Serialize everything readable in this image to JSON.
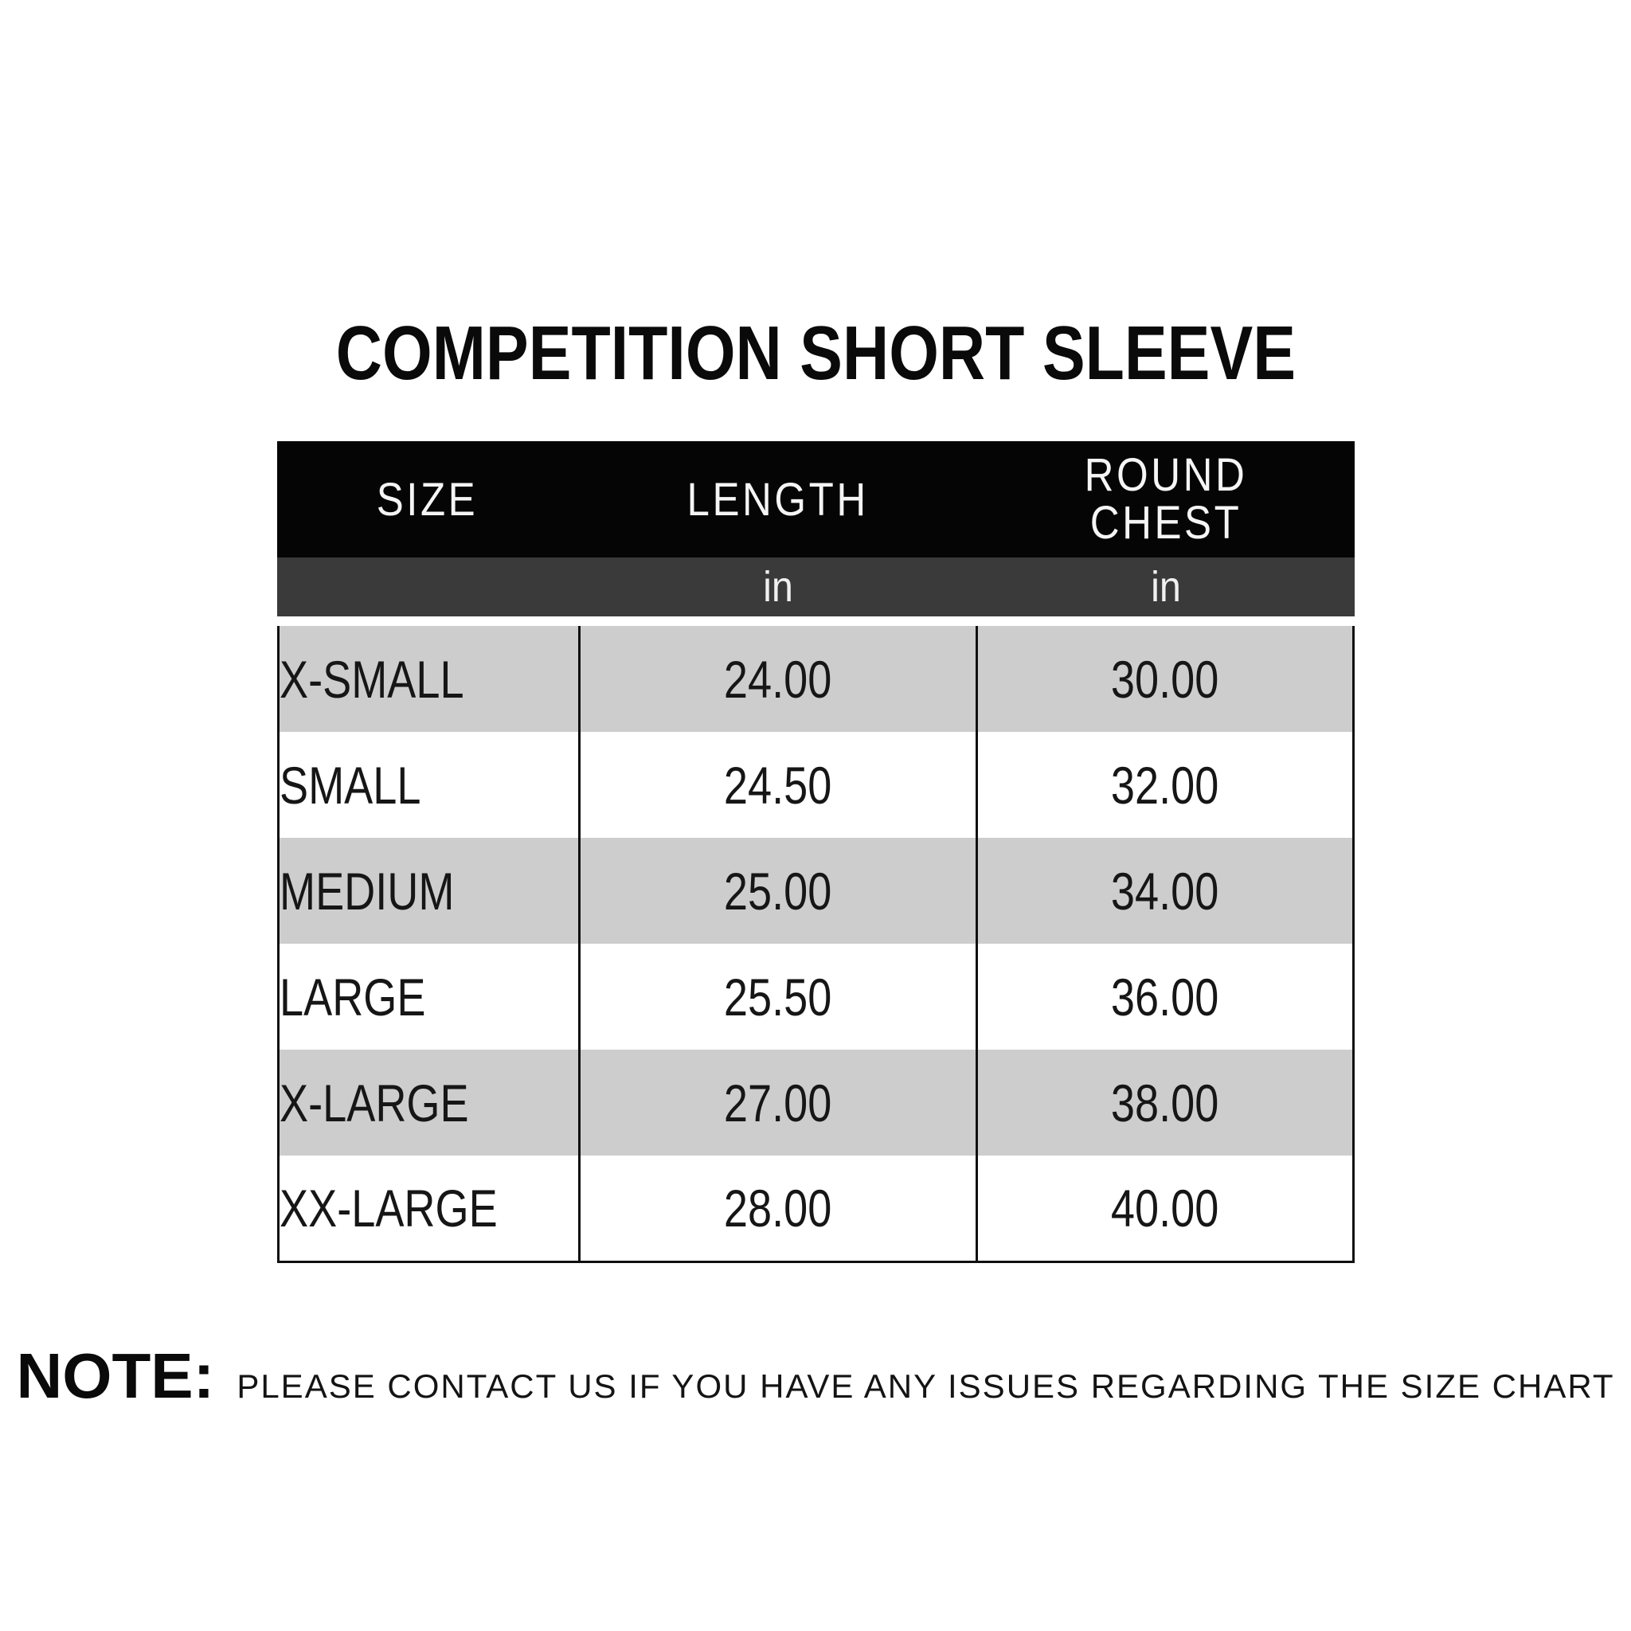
{
  "title": "COMPETITION SHORT SLEEVE",
  "table": {
    "header": {
      "size": "SIZE",
      "length": "LENGTH",
      "round_chest": "ROUND CHEST"
    },
    "units": {
      "length": "in",
      "round_chest": "in"
    },
    "rows": [
      {
        "size": "X-SMALL",
        "length": "24.00",
        "round_chest": "30.00"
      },
      {
        "size": "SMALL",
        "length": "24.50",
        "round_chest": "32.00"
      },
      {
        "size": "MEDIUM",
        "length": "25.00",
        "round_chest": "34.00"
      },
      {
        "size": "LARGE",
        "length": "25.50",
        "round_chest": "36.00"
      },
      {
        "size": "X-LARGE",
        "length": "27.00",
        "round_chest": "38.00"
      },
      {
        "size": "XX-LARGE",
        "length": "28.00",
        "round_chest": "40.00"
      }
    ]
  },
  "note": {
    "label": "NOTE:",
    "text": "PLEASE CONTACT US IF YOU HAVE ANY ISSUES REGARDING THE SIZE CHART"
  },
  "colors": {
    "header_bg": "#050505",
    "units_bg": "#3a3a3a",
    "row_stripe_bg": "#cdcdcd",
    "row_bg": "#ffffff",
    "border": "#101010",
    "text": "#161616",
    "header_text": "#f5f5f5"
  },
  "chart_data": {
    "type": "table",
    "title": "COMPETITION SHORT SLEEVE",
    "columns": [
      "SIZE",
      "LENGTH (in)",
      "ROUND CHEST (in)"
    ],
    "rows": [
      [
        "X-SMALL",
        24.0,
        30.0
      ],
      [
        "SMALL",
        24.5,
        32.0
      ],
      [
        "MEDIUM",
        25.0,
        34.0
      ],
      [
        "LARGE",
        25.5,
        36.0
      ],
      [
        "X-LARGE",
        27.0,
        38.0
      ],
      [
        "XX-LARGE",
        28.0,
        40.0
      ]
    ],
    "layout_hints": {
      "header_style": "black band, white text",
      "units_row_style": "dark gray band, white text",
      "body_style": "alternating gray/white rows, black column dividers"
    }
  }
}
